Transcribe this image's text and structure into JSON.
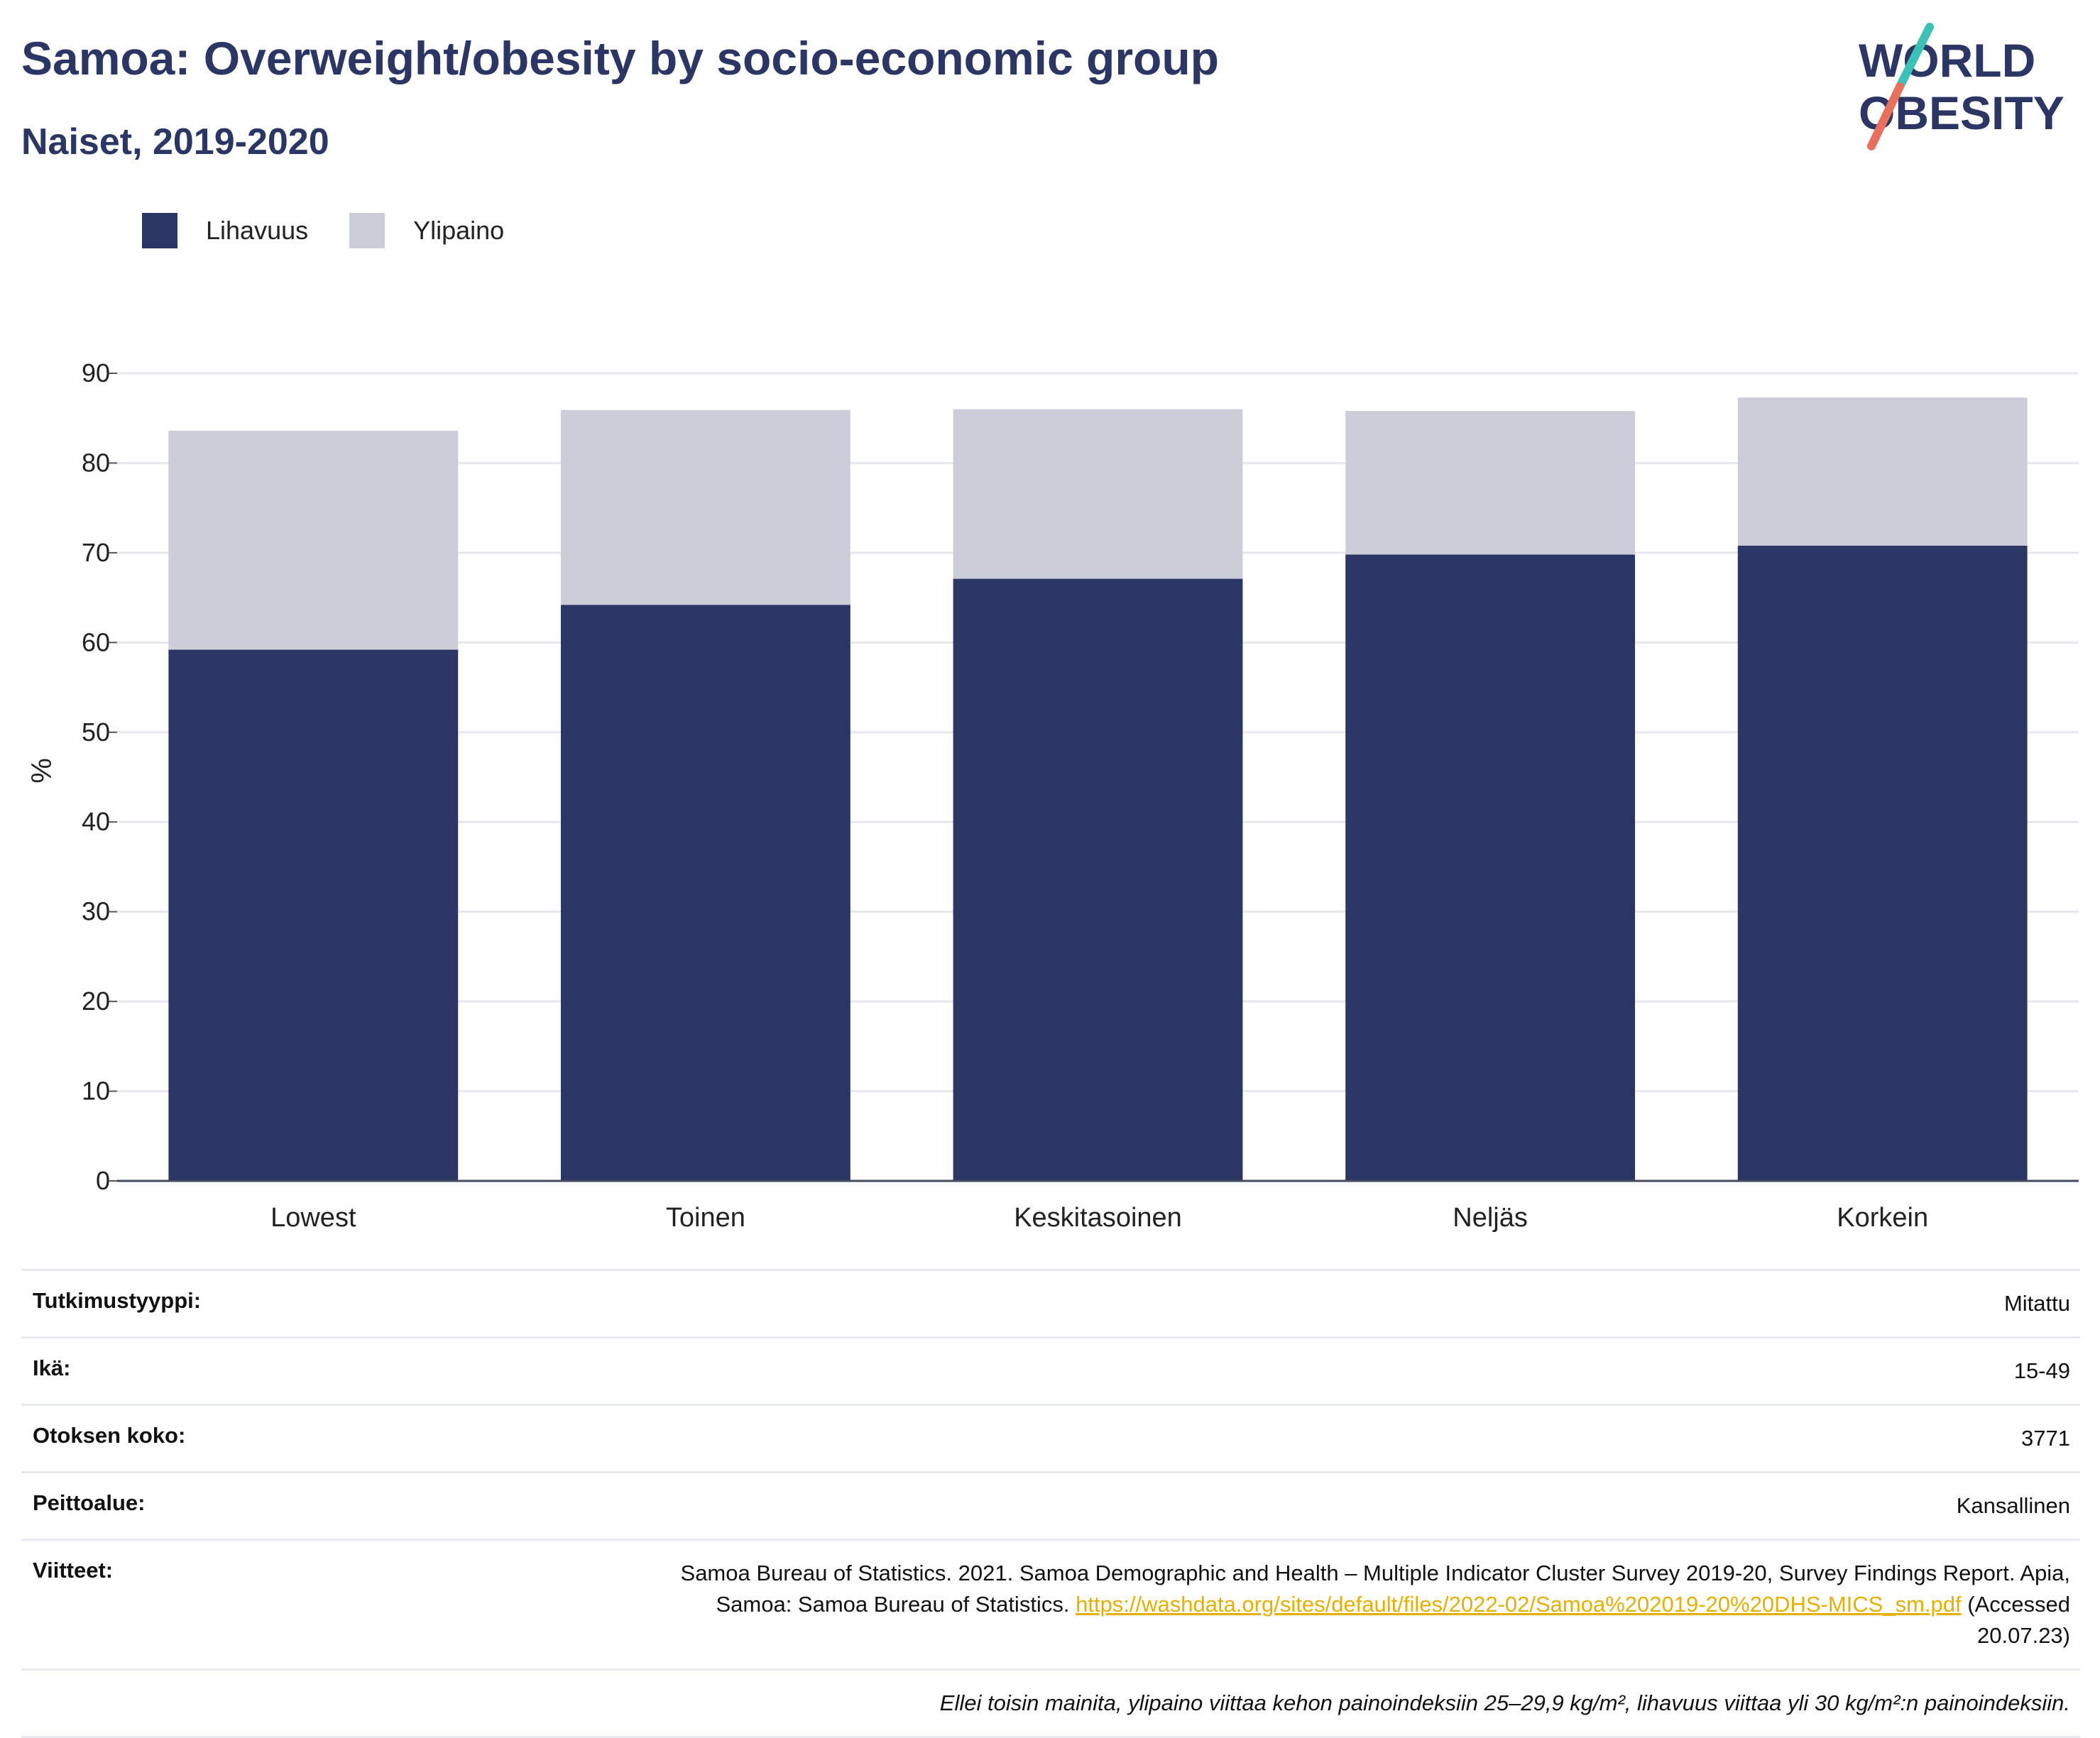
{
  "header": {
    "title": "Samoa: Overweight/obesity by socio-economic group",
    "subtitle": "Naiset, 2019-2020",
    "logo_line1": "WORLD",
    "logo_line2": "OBESITY"
  },
  "colors": {
    "obesity": "#2b3664",
    "overweight": "#cbcdd9",
    "title": "#2b3664",
    "link": "#e6b000"
  },
  "chart_data": {
    "type": "bar",
    "stacked": true,
    "categories": [
      "Lowest",
      "Toinen",
      "Keskitasoinen",
      "Neljäs",
      "Korkein"
    ],
    "series": [
      {
        "name": "Lihavuus",
        "values": [
          59.2,
          64.2,
          67.1,
          69.8,
          70.8
        ]
      },
      {
        "name": "Ylipaino",
        "values": [
          24.4,
          21.7,
          18.9,
          16.0,
          16.5
        ]
      }
    ],
    "title": "Samoa: Overweight/obesity by socio-economic group",
    "subtitle": "Naiset, 2019-2020",
    "ylabel": "%",
    "ylim": [
      0,
      90
    ],
    "yticks": [
      0,
      10,
      20,
      30,
      40,
      50,
      60,
      70,
      80,
      90
    ],
    "grid": true,
    "legend": "top-left"
  },
  "meta": {
    "rows": [
      {
        "key": "Tutkimustyyppi:",
        "value": "Mitattu"
      },
      {
        "key": "Ikä:",
        "value": "15-49"
      },
      {
        "key": "Otoksen koko:",
        "value": "3771"
      },
      {
        "key": "Peittoalue:",
        "value": "Kansallinen"
      }
    ],
    "references_key": "Viitteet:",
    "references_text": "Samoa Bureau of Statistics. 2021. Samoa Demographic and Health – Multiple Indicator Cluster Survey 2019-20, Survey Findings Report. Apia, Samoa: Samoa Bureau of Statistics.",
    "references_link": "https://washdata.org/sites/default/files/2022-02/Samoa%202019-20%20DHS-MICS_sm.pdf",
    "references_accessed": "(Accessed 20.07.23)",
    "note": "Ellei toisin mainita, ylipaino viittaa kehon painoindeksiin 25–29,9 kg/m², lihavuus viittaa yli 30 kg/m²:n painoindeksiin."
  }
}
